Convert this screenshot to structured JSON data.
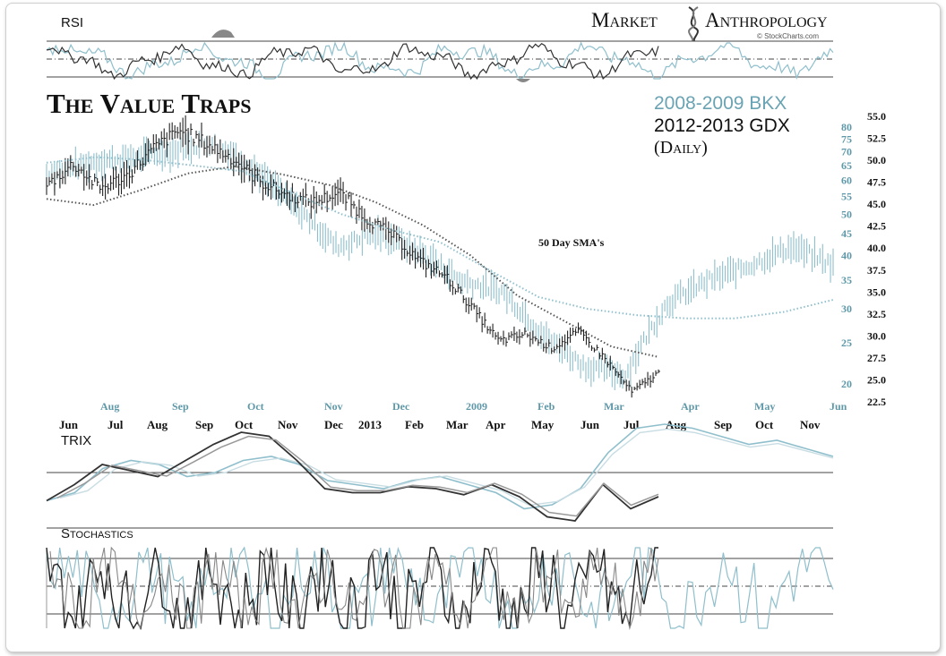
{
  "brand": {
    "word1": "Market",
    "word2": "Anthropology",
    "credit": "© StockCharts.com"
  },
  "titles": {
    "main": "The Value Traps",
    "series_a": "2008-2009 BKX",
    "series_b": "2012-2013 GDX",
    "period": "(Daily)"
  },
  "annotation": "50 Day SMA's",
  "panels": {
    "rsi": "RSI",
    "trix": "TRIX",
    "stochastics": "Stochastics"
  },
  "colors": {
    "gdx": "#222222",
    "bkx": "#8fbfcc",
    "axis_teal": "#5f98a8",
    "guide": "#333333"
  },
  "chart_data": {
    "type": "line",
    "right_axis_gdx": {
      "ticks": [
        55.0,
        52.5,
        50.0,
        47.5,
        45.0,
        42.5,
        40.0,
        37.5,
        35.0,
        32.5,
        30.0,
        27.5,
        25.0,
        22.5
      ],
      "labels": [
        "55.0",
        "52.5",
        "50.0",
        "47.5",
        "45.0",
        "42.5",
        "40.0",
        "37.5",
        "35.0",
        "32.5",
        "30.0",
        "27.5",
        "25.0",
        "22.5"
      ]
    },
    "right_axis_bkx": {
      "ticks": [
        80,
        75,
        70,
        65,
        60,
        55,
        50,
        45,
        40,
        35,
        30,
        25,
        20
      ],
      "labels": [
        "80",
        "75",
        "70",
        "65",
        "60",
        "55",
        "50",
        "45",
        "40",
        "35",
        "30",
        "25",
        "20"
      ],
      "scale": "log"
    },
    "x_axis_bkx": [
      "Aug",
      "Sep",
      "Oct",
      "Nov",
      "Dec",
      "2009",
      "Feb",
      "Mar",
      "Apr",
      "May",
      "Jun"
    ],
    "x_axis_gdx": [
      "Jun",
      "Jul",
      "Aug",
      "Sep",
      "Oct",
      "Nov",
      "Dec",
      "2013",
      "Feb",
      "Mar",
      "Apr",
      "May",
      "Jun",
      "Jul",
      "Aug",
      "Sep",
      "Oct",
      "Nov"
    ],
    "gdx_close": [
      47.1,
      49.6,
      46.8,
      48.2,
      51.3,
      53.4,
      51.9,
      50.2,
      47.6,
      46.1,
      45.2,
      46.3,
      43.4,
      41.5,
      38.6,
      36.8,
      33.2,
      29.4,
      30.2,
      28.6,
      30.5,
      27.4,
      23.6,
      25.8
    ],
    "bkx_close": [
      62,
      66,
      68,
      70,
      74,
      64,
      52,
      42,
      45,
      41,
      35,
      33,
      26,
      22,
      21,
      31,
      35,
      38,
      42,
      38
    ],
    "series": [
      {
        "name": "2012-2013 GDX",
        "color": "#222222"
      },
      {
        "name": "2008-2009 BKX",
        "color": "#8fbfcc"
      }
    ],
    "sma50_gdx": [
      45.6,
      44.9,
      46.6,
      48.5,
      49.3,
      48.4,
      47.2,
      45.2,
      42.6,
      39.2,
      34.6,
      31.7,
      28.8,
      27.6
    ],
    "sma50_bkx": [
      66,
      68,
      67,
      65,
      63,
      56,
      50,
      46,
      43,
      37,
      32,
      30,
      29,
      28.5,
      28.5,
      29.5,
      31.5
    ],
    "rsi_levels": [
      70,
      50,
      30
    ],
    "stochastics_levels": [
      80,
      50,
      20
    ]
  }
}
